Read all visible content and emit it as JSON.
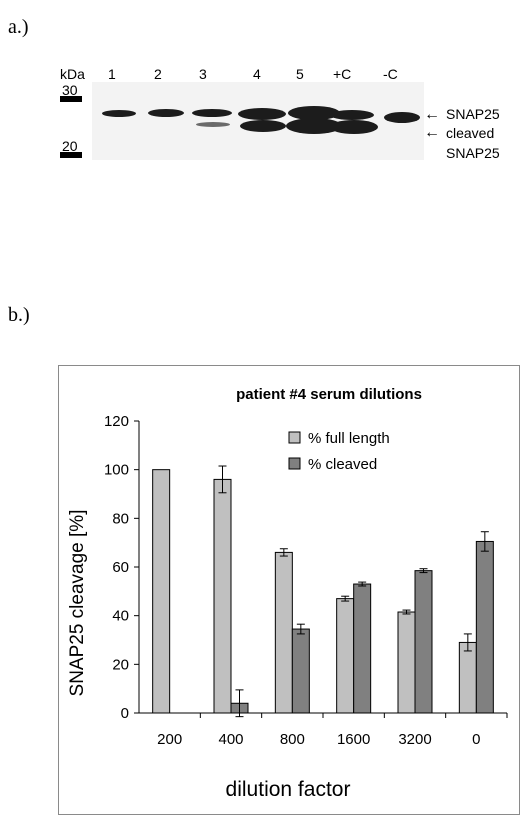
{
  "panels": {
    "a": "a.)",
    "b": "b.)"
  },
  "blot": {
    "kda_label": "kDa",
    "markers": [
      "30",
      "20"
    ],
    "lanes": [
      "1",
      "2",
      "3",
      "4",
      "5",
      "+C",
      "-C"
    ],
    "band_label_full": "SNAP25",
    "band_label_cleaved_1": "cleaved",
    "band_label_cleaved_2": "SNAP25",
    "arrow_glyph": "←"
  },
  "chart_data": {
    "type": "bar",
    "title": "patient #4 serum dilutions",
    "xlabel": "dilution factor",
    "ylabel": "SNAP25 cleavage [%]",
    "categories": [
      "200",
      "400",
      "800",
      "1600",
      "3200",
      "0"
    ],
    "ylim": [
      0,
      120
    ],
    "yticks": [
      0,
      20,
      40,
      60,
      80,
      100,
      120
    ],
    "legend_position": "top-right",
    "grid": false,
    "series": [
      {
        "name": "% full length",
        "color": "#c0c0c0",
        "values": [
          100,
          96,
          66,
          47,
          41.5,
          29
        ],
        "errors": [
          0,
          5.5,
          1.5,
          1,
          0.8,
          3.5
        ]
      },
      {
        "name": "% cleaved",
        "color": "#808080",
        "values": [
          0,
          4,
          34.5,
          53,
          58.5,
          70.5
        ],
        "errors": [
          0,
          5.5,
          2,
          0.8,
          0.8,
          4
        ]
      }
    ]
  }
}
